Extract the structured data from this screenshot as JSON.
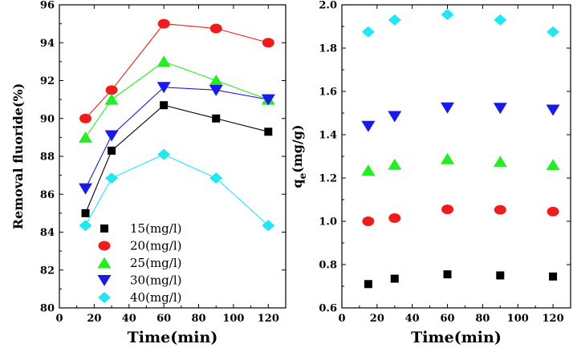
{
  "chart_data": [
    {
      "type": "line",
      "xlabel": "Time(min)",
      "ylabel": "Removal fluoride(%)",
      "xlim": [
        0,
        130
      ],
      "ylim": [
        80,
        96
      ],
      "x_ticks": [
        0,
        20,
        40,
        60,
        80,
        100,
        120
      ],
      "y_ticks": [
        80,
        82,
        84,
        86,
        88,
        90,
        92,
        94,
        96
      ],
      "x": [
        15,
        30,
        60,
        90,
        120
      ],
      "legend_position": "bottom-left",
      "series": [
        {
          "name": "15(mg/l)",
          "marker": "square",
          "color": "#000000",
          "values": [
            85.0,
            88.3,
            90.7,
            90.0,
            89.3
          ]
        },
        {
          "name": "20(mg/l)",
          "marker": "circle",
          "color": "#ee1c1c",
          "values": [
            90.0,
            91.5,
            95.0,
            94.75,
            94.0
          ]
        },
        {
          "name": "25(mg/l)",
          "marker": "triangle-up",
          "color": "#22ee22",
          "values": [
            89.0,
            91.0,
            93.0,
            92.0,
            91.0
          ]
        },
        {
          "name": "30(mg/l)",
          "marker": "triangle-down",
          "color": "#1a1ae6",
          "values": [
            86.3,
            89.1,
            91.65,
            91.5,
            91.0
          ]
        },
        {
          "name": "40(mg/l)",
          "marker": "diamond",
          "color": "#22e6f0",
          "values": [
            84.35,
            86.85,
            88.1,
            86.85,
            84.35
          ]
        }
      ]
    },
    {
      "type": "scatter",
      "xlabel": "Time(min)",
      "ylabel_main": "q",
      "ylabel_sub": "e",
      "ylabel_rest": "(mg/g)",
      "xlim": [
        0,
        130
      ],
      "ylim": [
        0.6,
        2.0
      ],
      "x_ticks": [
        0,
        20,
        40,
        60,
        80,
        100,
        120
      ],
      "y_ticks": [
        0.6,
        0.8,
        1.0,
        1.2,
        1.4,
        1.6,
        1.8,
        2.0
      ],
      "x": [
        15,
        30,
        60,
        90,
        120
      ],
      "series": [
        {
          "name": "15(mg/l)",
          "marker": "square",
          "color": "#000000",
          "values": [
            0.71,
            0.735,
            0.755,
            0.75,
            0.745
          ]
        },
        {
          "name": "20(mg/l)",
          "marker": "circle",
          "color": "#ee1c1c",
          "values": [
            1.0,
            1.015,
            1.055,
            1.053,
            1.045
          ]
        },
        {
          "name": "25(mg/l)",
          "marker": "triangle-up",
          "color": "#22ee22",
          "values": [
            1.235,
            1.262,
            1.288,
            1.275,
            1.26
          ]
        },
        {
          "name": "30(mg/l)",
          "marker": "triangle-down",
          "color": "#1a1ae6",
          "values": [
            1.44,
            1.485,
            1.525,
            1.523,
            1.515
          ]
        },
        {
          "name": "40(mg/l)",
          "marker": "diamond",
          "color": "#22e6f0",
          "values": [
            1.875,
            1.93,
            1.955,
            1.93,
            1.875
          ]
        }
      ]
    }
  ]
}
